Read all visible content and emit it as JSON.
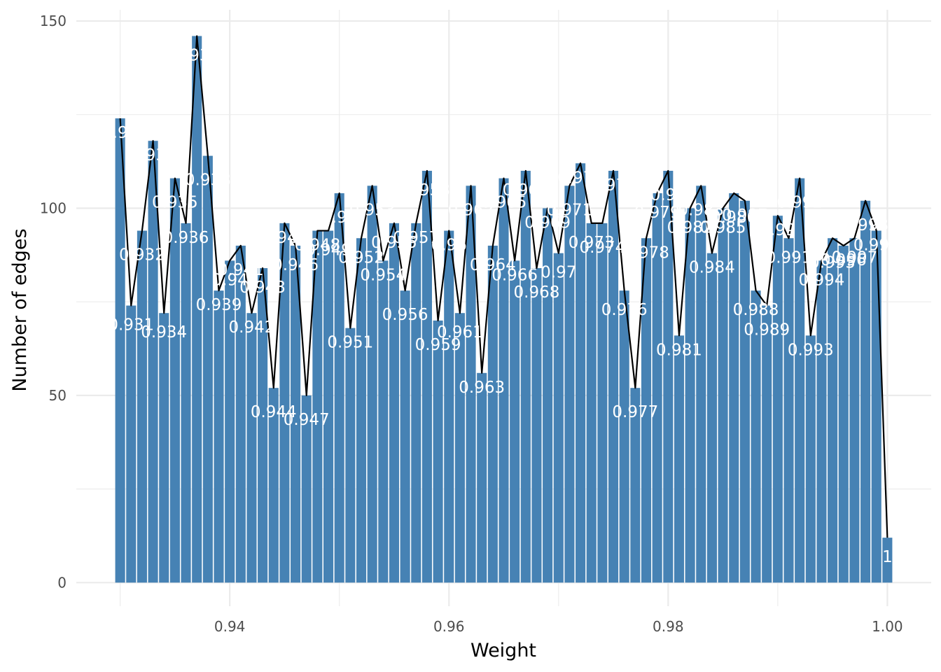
{
  "chart_data": {
    "type": "bar",
    "xlabel": "Weight",
    "ylabel": "Number of edges",
    "x_ticks": [
      0.94,
      0.96,
      0.98,
      1.0
    ],
    "x_tick_labels": [
      "0.94",
      "0.96",
      "0.98",
      "1.00"
    ],
    "y_ticks": [
      0,
      50,
      100,
      150
    ],
    "y_tick_labels": [
      "0",
      "50",
      "100",
      "150"
    ],
    "xlim": [
      0.926,
      1.004
    ],
    "ylim": [
      -6.3,
      153
    ],
    "grid": true,
    "overlay_line": true,
    "x": [
      0.93,
      0.931,
      0.932,
      0.933,
      0.934,
      0.935,
      0.936,
      0.937,
      0.938,
      0.939,
      0.94,
      0.941,
      0.942,
      0.943,
      0.944,
      0.945,
      0.946,
      0.947,
      0.948,
      0.949,
      0.95,
      0.951,
      0.952,
      0.953,
      0.954,
      0.955,
      0.956,
      0.957,
      0.958,
      0.959,
      0.96,
      0.961,
      0.962,
      0.963,
      0.964,
      0.965,
      0.966,
      0.967,
      0.968,
      0.969,
      0.97,
      0.971,
      0.972,
      0.973,
      0.974,
      0.975,
      0.976,
      0.977,
      0.978,
      0.979,
      0.98,
      0.981,
      0.982,
      0.983,
      0.984,
      0.985,
      0.986,
      0.987,
      0.988,
      0.989,
      0.99,
      0.991,
      0.992,
      0.993,
      0.994,
      0.995,
      0.996,
      0.997,
      0.998,
      0.999,
      1.0
    ],
    "values": [
      124,
      74,
      94,
      118,
      72,
      108,
      96,
      146,
      114,
      78,
      86,
      90,
      72,
      84,
      52,
      96,
      90,
      50,
      94,
      94,
      104,
      68,
      92,
      106,
      86,
      96,
      78,
      96,
      110,
      70,
      94,
      72,
      106,
      56,
      90,
      108,
      86,
      110,
      84,
      100,
      88,
      106,
      112,
      96,
      96,
      110,
      78,
      52,
      92,
      104,
      110,
      66,
      100,
      106,
      88,
      100,
      104,
      102,
      78,
      74,
      98,
      92,
      108,
      66,
      86,
      92,
      90,
      92,
      102,
      94,
      12
    ],
    "labels": [
      "0.93",
      "0.931",
      "0.932",
      "0.933",
      "0.934",
      "0.935",
      "0.936",
      "0.937",
      "0.938",
      "0.939",
      "0.94",
      "0.941",
      "0.942",
      "0.943",
      "0.944",
      "0.945",
      "0.946",
      "0.947",
      "0.948",
      "0.949",
      "0.95",
      "0.951",
      "0.952",
      "0.953",
      "0.954",
      "0.955",
      "0.956",
      "0.957",
      "0.958",
      "0.959",
      "0.96",
      "0.961",
      "0.962",
      "0.963",
      "0.964",
      "0.965",
      "0.966",
      "0.967",
      "0.968",
      "0.969",
      "0.97",
      "0.971",
      "0.972",
      "0.973",
      "0.974",
      "0.975",
      "0.976",
      "0.977",
      "0.978",
      "0.979",
      "0.98",
      "0.981",
      "0.982",
      "0.983",
      "0.984",
      "0.985",
      "0.986",
      "0.987",
      "0.988",
      "0.989",
      "0.99",
      "0.991",
      "0.992",
      "0.993",
      "0.994",
      "0.995",
      "0.996",
      "0.997",
      "0.998",
      "0.999",
      "1"
    ],
    "colors": {
      "bar": "#4682b4",
      "line": "#000000",
      "grid": "#ebebeb",
      "label": "#ffffff"
    }
  }
}
